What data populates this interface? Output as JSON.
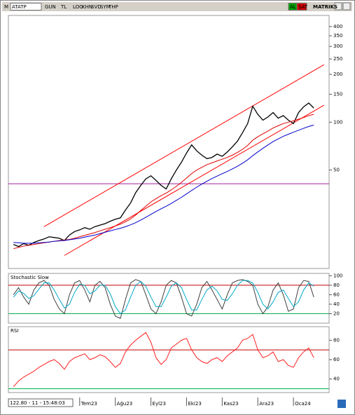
{
  "toolbar": [
    "M",
    "ATATP",
    "GUN",
    "TL",
    "LOG",
    "KHN",
    "SVD",
    "SYM",
    "THP",
    "AL",
    "SAT",
    "MATRIKS"
  ],
  "status": "122.80 - 11 - 15:48:03",
  "chart_data": [
    {
      "type": "line",
      "log": true,
      "xlim": [
        -1,
        62
      ],
      "ylim": [
        12,
        470
      ],
      "yticks": [
        50,
        100,
        150,
        200,
        250,
        300,
        350,
        400
      ],
      "x": [
        0,
        1,
        2,
        3,
        4,
        5,
        6,
        7,
        8,
        9,
        10,
        11,
        12,
        13,
        14,
        15,
        16,
        17,
        18,
        19,
        20,
        21,
        22,
        23,
        24,
        25,
        26,
        27,
        28,
        29,
        30,
        31,
        32,
        33,
        34,
        35,
        36,
        37,
        38,
        39,
        40,
        41,
        42,
        43,
        44,
        45,
        46,
        47,
        48,
        49,
        50,
        51,
        52,
        53,
        54,
        55,
        56,
        57,
        58,
        59
      ],
      "series": [
        {
          "color": "#000000",
          "values": [
            17,
            16.5,
            17.2,
            16.8,
            17.5,
            18,
            18.4,
            19,
            18.8,
            18.6,
            18,
            19.5,
            20.5,
            21,
            21.7,
            21.2,
            22,
            22.5,
            23,
            23.8,
            24.5,
            25,
            28,
            31,
            36,
            40,
            44,
            46,
            43,
            40,
            38,
            44,
            50,
            56,
            64,
            72,
            66,
            62,
            59,
            60,
            63,
            61,
            65,
            70,
            76,
            86,
            98,
            126,
            112,
            103,
            108,
            115,
            106,
            110,
            103,
            98,
            115,
            125,
            132,
            122.8
          ]
        },
        {
          "color": "#e00000",
          "values": [
            16,
            16.3,
            16.6,
            16.8,
            17,
            17.2,
            17.4,
            17.6,
            17.8,
            18,
            18.1,
            18.3,
            18.6,
            19,
            19.4,
            19.8,
            20.2,
            20.7,
            21.2,
            21.7,
            22.2,
            22.8,
            23.6,
            24.6,
            26,
            27.8,
            29.6,
            31.5,
            33,
            34.5,
            35.8,
            37.5,
            39.5,
            41.8,
            44.5,
            47.5,
            50,
            52,
            54,
            55.5,
            57,
            58.5,
            60,
            62,
            64.5,
            67.5,
            71.5,
            77,
            81,
            84.5,
            88,
            92,
            95,
            98,
            100,
            102,
            104.5,
            107,
            110,
            112
          ]
        },
        {
          "color": "#0000cc",
          "values": [
            17.5,
            17.4,
            17.3,
            17.3,
            17.3,
            17.4,
            17.5,
            17.6,
            17.8,
            17.9,
            18,
            18.2,
            18.4,
            18.6,
            18.9,
            19.2,
            19.5,
            19.9,
            20.3,
            20.7,
            21.1,
            21.5,
            22,
            22.6,
            23.3,
            24.2,
            25.2,
            26.3,
            27.4,
            28.5,
            29.6,
            30.8,
            32.2,
            33.7,
            35.4,
            37.2,
            39,
            40.8,
            42.5,
            44.2,
            45.8,
            47.4,
            49,
            50.8,
            52.8,
            55.2,
            58,
            61.5,
            65,
            68.5,
            72,
            75.5,
            78.5,
            81.5,
            84,
            86.5,
            89,
            91.5,
            94,
            96
          ]
        }
      ],
      "channels": [
        {
          "color": "#ff0000",
          "x": [
            6,
            61
          ],
          "values": [
            22,
            230
          ]
        },
        {
          "color": "#ff0000",
          "x": [
            10,
            61
          ],
          "values": [
            14.5,
            128
          ]
        }
      ],
      "hlines": [
        {
          "value": 41,
          "color": "#a020a0"
        }
      ]
    },
    {
      "type": "line",
      "title": "Stochastic Slow",
      "xlim": [
        -1,
        62
      ],
      "ylim": [
        0,
        105
      ],
      "yticks": [
        20,
        40,
        60,
        80,
        100
      ],
      "x": [
        0,
        1,
        2,
        3,
        4,
        5,
        6,
        7,
        8,
        9,
        10,
        11,
        12,
        13,
        14,
        15,
        16,
        17,
        18,
        19,
        20,
        21,
        22,
        23,
        24,
        25,
        26,
        27,
        28,
        29,
        30,
        31,
        32,
        33,
        34,
        35,
        36,
        37,
        38,
        39,
        40,
        41,
        42,
        43,
        44,
        45,
        46,
        47,
        48,
        49,
        50,
        51,
        52,
        53,
        54,
        55,
        56,
        57,
        58,
        59
      ],
      "series": [
        {
          "color": "#404040",
          "values": [
            60,
            75,
            55,
            40,
            70,
            85,
            90,
            80,
            50,
            30,
            20,
            60,
            85,
            90,
            70,
            45,
            80,
            88,
            75,
            40,
            15,
            10,
            50,
            85,
            92,
            88,
            60,
            30,
            20,
            45,
            80,
            90,
            85,
            55,
            20,
            15,
            40,
            75,
            88,
            70,
            50,
            30,
            60,
            85,
            90,
            92,
            88,
            80,
            40,
            20,
            35,
            70,
            85,
            60,
            25,
            30,
            75,
            90,
            88,
            55
          ]
        },
        {
          "color": "#00a8c8",
          "values": [
            55,
            68,
            63,
            52,
            58,
            72,
            85,
            85,
            70,
            50,
            32,
            40,
            65,
            82,
            80,
            62,
            68,
            80,
            80,
            62,
            35,
            20,
            28,
            55,
            80,
            88,
            78,
            55,
            35,
            35,
            55,
            78,
            85,
            75,
            50,
            28,
            28,
            50,
            70,
            78,
            68,
            50,
            48,
            62,
            80,
            90,
            90,
            85,
            65,
            40,
            30,
            45,
            65,
            70,
            52,
            35,
            45,
            70,
            85,
            78
          ]
        }
      ],
      "hlines": [
        {
          "value": 80,
          "color": "#c00000"
        },
        {
          "value": 20,
          "color": "#00b050"
        }
      ]
    },
    {
      "type": "line",
      "title": "RSI",
      "xlim": [
        -1,
        62
      ],
      "ylim": [
        26,
        94
      ],
      "yticks": [
        40,
        60,
        80
      ],
      "xticks": [
        {
          "value": 13,
          "label": "Tem23"
        },
        {
          "value": 20,
          "label": "Ağu23"
        },
        {
          "value": 27,
          "label": "Eyl23"
        },
        {
          "value": 34,
          "label": "Eki23"
        },
        {
          "value": 41,
          "label": "Kas23"
        },
        {
          "value": 48,
          "label": "Ara23"
        },
        {
          "value": 55,
          "label": "Oca24"
        }
      ],
      "x": [
        0,
        1,
        2,
        3,
        4,
        5,
        6,
        7,
        8,
        9,
        10,
        11,
        12,
        13,
        14,
        15,
        16,
        17,
        18,
        19,
        20,
        21,
        22,
        23,
        24,
        25,
        26,
        27,
        28,
        29,
        30,
        31,
        32,
        33,
        34,
        35,
        36,
        37,
        38,
        39,
        40,
        41,
        42,
        43,
        44,
        45,
        46,
        47,
        48,
        49,
        50,
        51,
        52,
        53,
        54,
        55,
        56,
        57,
        58,
        59
      ],
      "series": [
        {
          "color": "#ff2020",
          "values": [
            32,
            38,
            42,
            45,
            48,
            52,
            55,
            58,
            60,
            56,
            50,
            58,
            62,
            64,
            66,
            60,
            62,
            65,
            63,
            58,
            52,
            56,
            68,
            75,
            80,
            84,
            88,
            78,
            62,
            55,
            60,
            72,
            76,
            80,
            82,
            70,
            62,
            58,
            56,
            60,
            62,
            58,
            64,
            68,
            72,
            80,
            82,
            86,
            70,
            62,
            64,
            68,
            58,
            60,
            54,
            52,
            62,
            68,
            72,
            62
          ]
        }
      ],
      "hlines": [
        {
          "value": 70,
          "color": "#c00000"
        },
        {
          "value": 30,
          "color": "#00b050"
        }
      ]
    }
  ]
}
